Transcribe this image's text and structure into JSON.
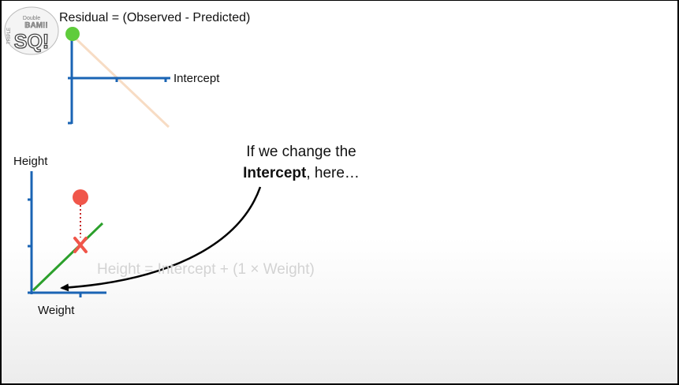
{
  "logo": {
    "lines": [
      "Double",
      "BAM!!",
      "SQ!"
    ],
    "side_text": "TRIPLE"
  },
  "residual_plot": {
    "title": "Residual = (Observed - Predicted)",
    "x_axis_label": "Intercept"
  },
  "main_plot": {
    "y_axis_label": "Height",
    "x_axis_label": "Weight",
    "equation": "Height = Intercept + (1 × Weight)"
  },
  "callout": {
    "line1": "If we change the",
    "emphasis": "Intercept",
    "rest": ", here…"
  },
  "colors": {
    "axis": "#1a64b4",
    "observed_point": "#f0564a",
    "residual_point": "#5fcc3c",
    "fit_line": "#2ca02c",
    "residual_line": "#f7dcc4",
    "arrow": "#000000"
  }
}
